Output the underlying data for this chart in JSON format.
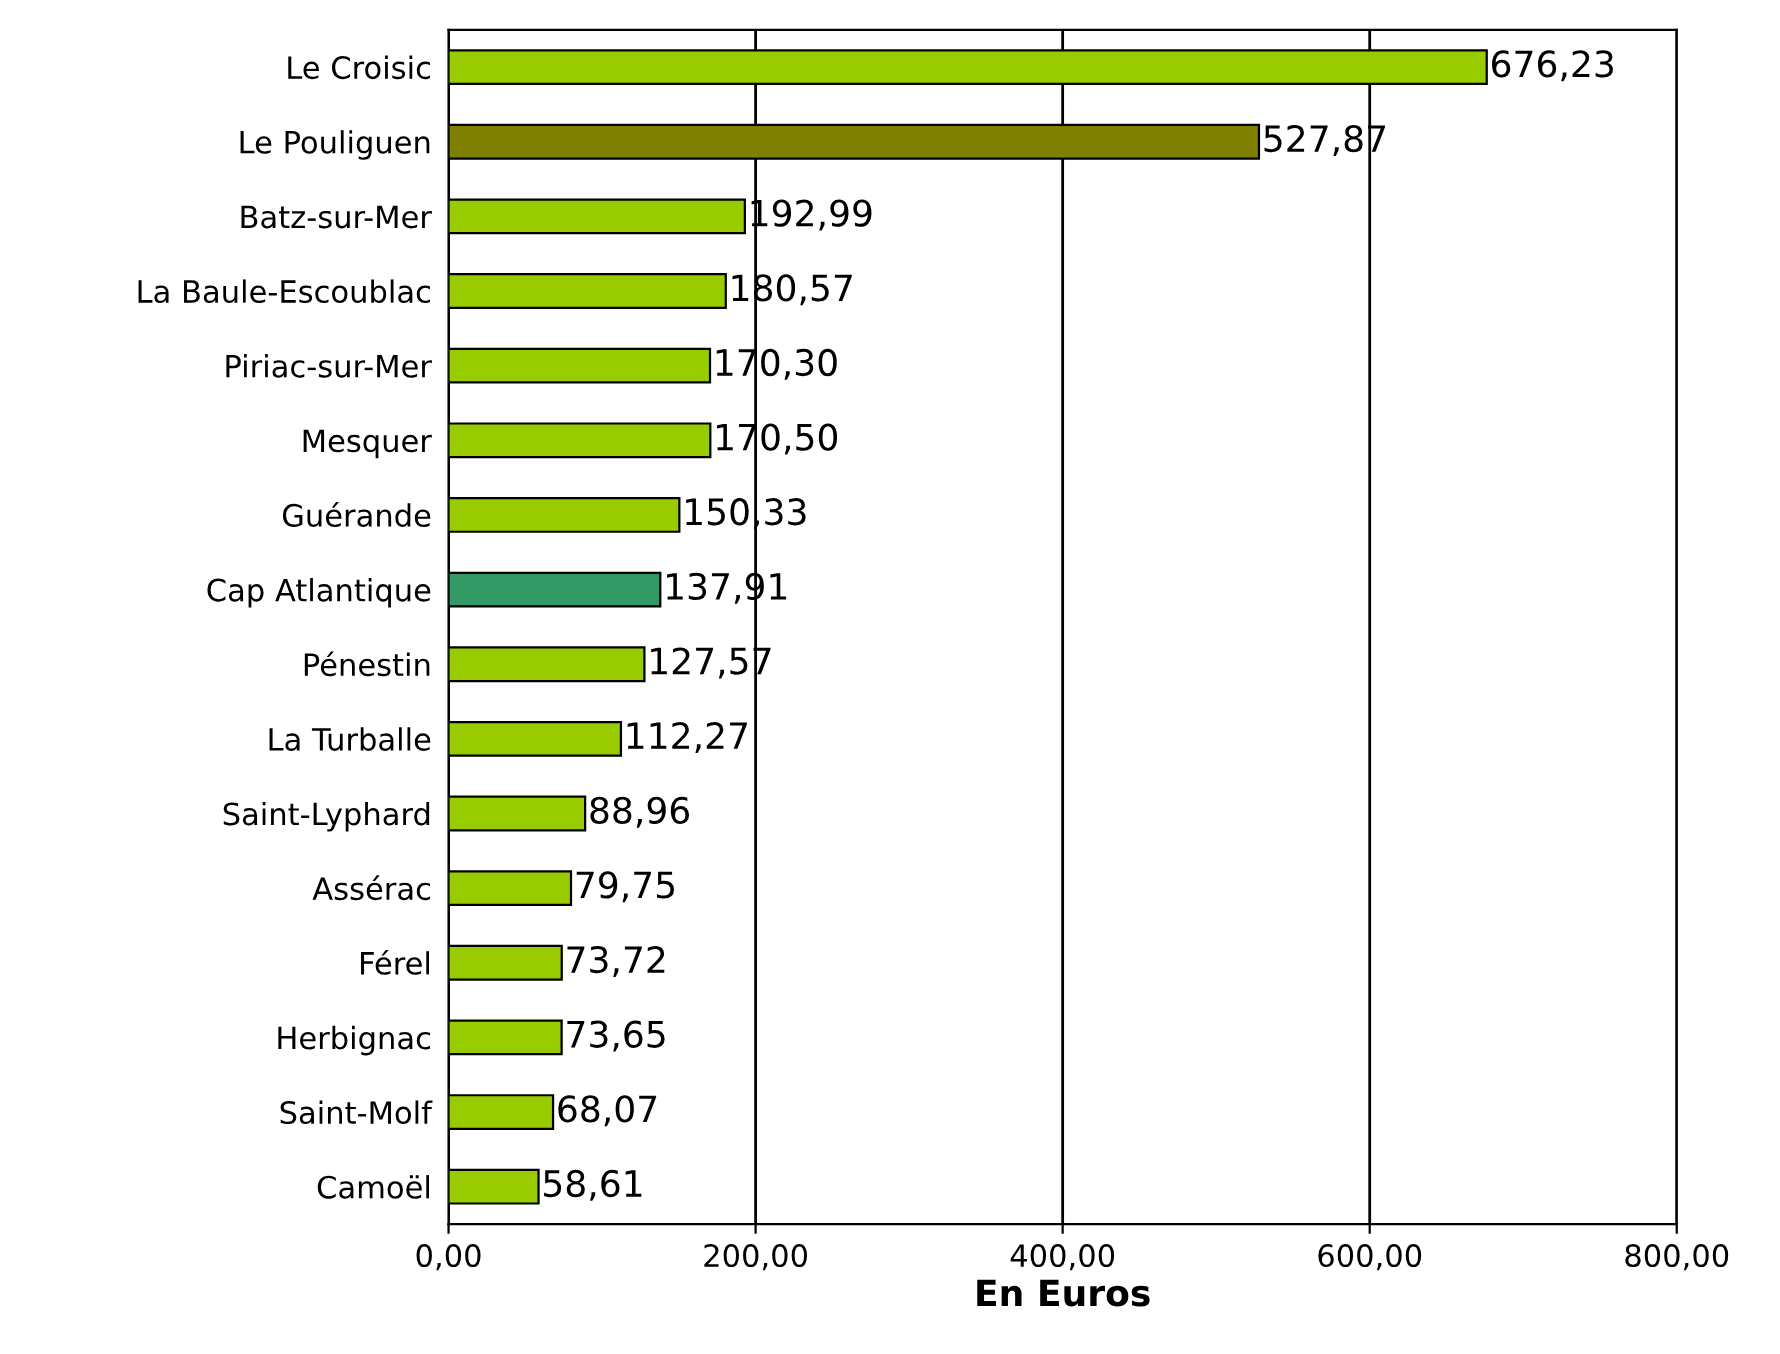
{
  "chart_data": {
    "type": "bar",
    "orientation": "horizontal",
    "xlabel": "En Euros",
    "categories": [
      "Le Croisic",
      "Le Pouliguen",
      "Batz-sur-Mer",
      "La Baule-Escoublac",
      "Piriac-sur-Mer",
      "Mesquer",
      "Guérande",
      "Cap Atlantique",
      "Pénestin",
      "La Turballe",
      "Saint-Lyphard",
      "Assérac",
      "Férel",
      "Herbignac",
      "Saint-Molf",
      "Camoël"
    ],
    "values": [
      676.23,
      527.87,
      192.99,
      180.57,
      170.3,
      170.5,
      150.33,
      137.91,
      127.57,
      112.27,
      88.96,
      79.75,
      73.72,
      73.65,
      68.07,
      58.61
    ],
    "value_labels": [
      "676,23",
      "527,87",
      "192,99",
      "180,57",
      "170,30",
      "170,50",
      "150,33",
      "137,91",
      "127,57",
      "112,27",
      "88,96",
      "79,75",
      "73,72",
      "73,65",
      "68,07",
      "58,61"
    ],
    "colors": [
      "#99cc00",
      "#808000",
      "#99cc00",
      "#99cc00",
      "#99cc00",
      "#99cc00",
      "#99cc00",
      "#339966",
      "#99cc00",
      "#99cc00",
      "#99cc00",
      "#99cc00",
      "#99cc00",
      "#99cc00",
      "#99cc00",
      "#99cc00"
    ],
    "xlim": [
      0,
      800
    ],
    "xticks": [
      {
        "value": 0,
        "label": "0,00"
      },
      {
        "value": 200,
        "label": "200,00"
      },
      {
        "value": 400,
        "label": "400,00"
      },
      {
        "value": 600,
        "label": "600,00"
      },
      {
        "value": 800,
        "label": "800,00"
      }
    ],
    "grid": "x",
    "legend": false
  }
}
